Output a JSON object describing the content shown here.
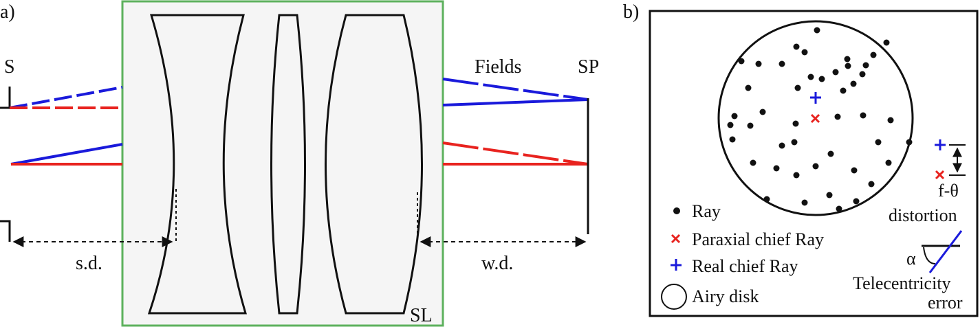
{
  "panel_a": {
    "label": "a)",
    "source_label": "S",
    "fields_label": "Fields",
    "scan_plane_label": "SP",
    "lens_label": "SL",
    "scan_distance_label": "s.d.",
    "working_distance_label": "w.d."
  },
  "panel_b": {
    "label": "b)",
    "legend": {
      "ray": "Ray",
      "paraxial": "Paraxial chief Ray",
      "real": "Real chief Ray",
      "airy": "Airy disk"
    },
    "f_theta_line1": "f-θ",
    "f_theta_line2": "distortion",
    "alpha": "α",
    "telecentricity_line1": "Telecentricity",
    "telecentricity_line2": "error"
  },
  "colors": {
    "red": "#e8231f",
    "blue": "#1a1adb",
    "green_border": "#5db15d",
    "lens_box_fill": "#f5f5f5",
    "line": "#111111"
  }
}
